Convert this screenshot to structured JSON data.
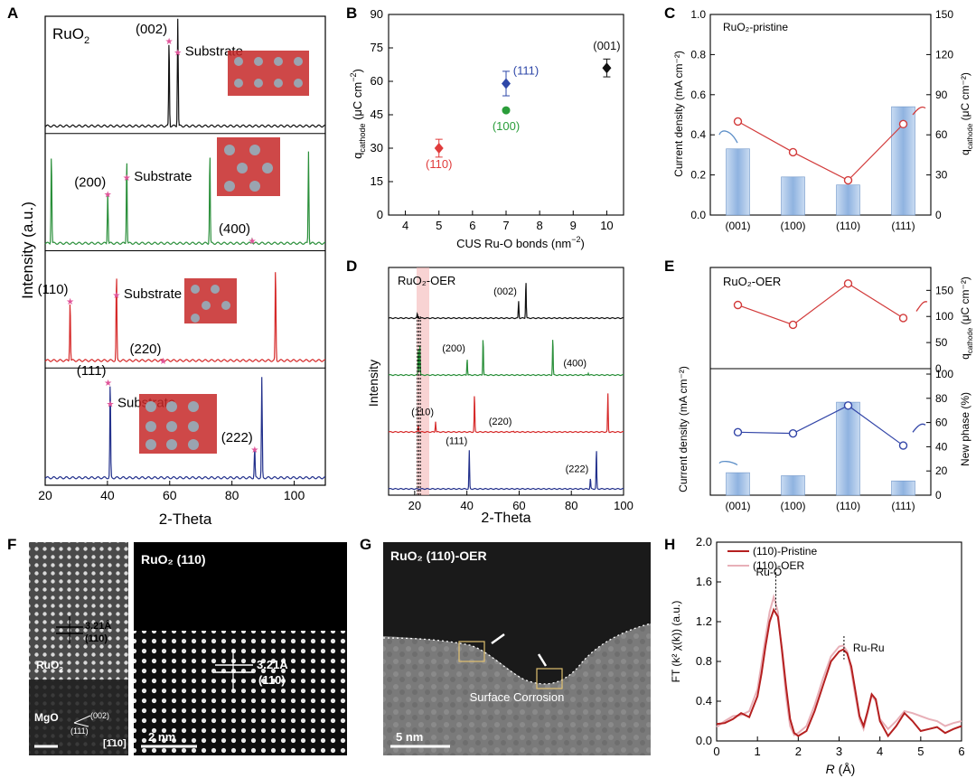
{
  "panel_letters": {
    "A": "A",
    "B": "B",
    "C": "C",
    "D": "D",
    "E": "E",
    "F": "F",
    "G": "G",
    "H": "H"
  },
  "chart_data": [
    {
      "panel": "A",
      "type": "line",
      "xlabel": "2-Theta",
      "ylabel": "Intensity (a.u.)",
      "xlim": [
        20,
        110
      ],
      "xticks": [
        20,
        40,
        60,
        80,
        100
      ],
      "sample_label": "RuO",
      "sample_label_sub": "2",
      "series": [
        {
          "color": "#111111",
          "base": 0.2,
          "peaks": [
            [
              59.8,
              0.85
            ],
            [
              62.6,
              1.05
            ]
          ]
        },
        {
          "color": "#2a8f3a",
          "base": 0.2,
          "peaks": [
            [
              22.0,
              0.9
            ],
            [
              40.1,
              0.5
            ],
            [
              46.2,
              0.85
            ],
            [
              72.9,
              0.9
            ],
            [
              86.5,
              0.05
            ],
            [
              104.6,
              0.9
            ]
          ]
        },
        {
          "color": "#d62a2a",
          "base": 0.2,
          "peaks": [
            [
              28.0,
              0.6
            ],
            [
              42.9,
              0.85
            ],
            [
              57.9,
              0.02
            ],
            [
              94.0,
              0.92
            ]
          ]
        },
        {
          "color": "#23318c",
          "base": 0.2,
          "peaks": [
            [
              40.9,
              0.95
            ],
            [
              87.3,
              0.3
            ],
            [
              89.6,
              0.97
            ]
          ]
        }
      ],
      "annotations": [
        {
          "strip": 0,
          "text": "(002)",
          "x": 59.8
        },
        {
          "strip": 0,
          "text": "Substrate",
          "x": 62.6
        },
        {
          "strip": 1,
          "text": "(200)",
          "x": 40.1
        },
        {
          "strip": 1,
          "text": "Substrate",
          "x": 46.2
        },
        {
          "strip": 1,
          "text": "(400)",
          "x": 86.5
        },
        {
          "strip": 2,
          "text": "(110)",
          "x": 28.0
        },
        {
          "strip": 2,
          "text": "Substrate",
          "x": 42.9
        },
        {
          "strip": 2,
          "text": "(220)",
          "x": 57.9
        },
        {
          "strip": 3,
          "text": "Substrate",
          "x": 40.9
        },
        {
          "strip": 3,
          "text": "(111)",
          "x": 40.2
        },
        {
          "strip": 3,
          "text": "(222)",
          "x": 87.3
        }
      ]
    },
    {
      "panel": "B",
      "type": "scatter",
      "xlabel": "CUS Ru-O bonds (nm",
      "xlabel_sup": "−2",
      "xlabel_end": ")",
      "ylabel": "q",
      "ylabel_sub": "cathode",
      "ylabel_end": " (μC cm",
      "ylabel_sup": "−2",
      "ylabel_close": ")",
      "xlim": [
        3.5,
        10.5
      ],
      "ylim": [
        0,
        90
      ],
      "xticks": [
        4,
        5,
        6,
        7,
        8,
        9,
        10
      ],
      "yticks": [
        0,
        15,
        30,
        45,
        60,
        75,
        90
      ],
      "points": [
        {
          "label": "(110)",
          "x": 5,
          "y": 30,
          "err": 4,
          "color": "#e03b3b",
          "shape": "diamond"
        },
        {
          "label": "(100)",
          "x": 7,
          "y": 47,
          "err": 0,
          "color": "#2a9d3a",
          "shape": "circle"
        },
        {
          "label": "(111)",
          "x": 7,
          "y": 59,
          "err": 5.5,
          "color": "#2e47a8",
          "shape": "diamond"
        },
        {
          "label": "(001)",
          "x": 10,
          "y": 66,
          "err": 4,
          "color": "#111111",
          "shape": "diamond"
        }
      ]
    },
    {
      "panel": "C",
      "type": "bar",
      "title": "RuO₂-pristine",
      "categories": [
        "(001)",
        "(100)",
        "(110)",
        "(111)"
      ],
      "ylabel": "Current density (mA cm⁻²)",
      "ylabel2": "q",
      "ylabel2_sub": "cathode",
      "ylabel2_end": " (μC cm⁻²)",
      "ylim": [
        0,
        1.0
      ],
      "yticks": [
        0.0,
        0.2,
        0.4,
        0.6,
        0.8,
        1.0
      ],
      "y2lim": [
        0,
        150
      ],
      "y2ticks": [
        0,
        30,
        60,
        90,
        120,
        150
      ],
      "bars": [
        0.33,
        0.19,
        0.15,
        0.54
      ],
      "line": [
        70,
        47,
        26,
        68
      ],
      "line_color": "#d23a3a",
      "bar_color": "#8fb3e0"
    },
    {
      "panel": "D",
      "type": "line",
      "xlabel": "2-Theta",
      "ylabel": "Intensity",
      "xlim": [
        10,
        100
      ],
      "xticks": [
        20,
        40,
        60,
        80,
        100
      ],
      "title": "RuO₂-OER",
      "series": [
        {
          "color": "#111111",
          "base": 0.0,
          "peaks": [
            [
              21.0,
              0.1
            ],
            [
              59.8,
              0.4
            ],
            [
              62.6,
              0.9
            ]
          ]
        },
        {
          "color": "#2a8f3a",
          "base": 0.0,
          "peaks": [
            [
              21.4,
              0.6
            ],
            [
              22.0,
              0.7
            ],
            [
              40.1,
              0.4
            ],
            [
              46.2,
              0.9
            ],
            [
              72.9,
              0.9
            ],
            [
              86.5,
              0.05
            ]
          ]
        },
        {
          "color": "#d62a2a",
          "base": 0.0,
          "peaks": [
            [
              21.4,
              0.15
            ],
            [
              28.0,
              0.25
            ],
            [
              42.9,
              0.9
            ],
            [
              57.9,
              0.02
            ],
            [
              94.0,
              0.9
            ]
          ]
        },
        {
          "color": "#23318c",
          "base": 0.0,
          "peaks": [
            [
              40.9,
              0.9
            ],
            [
              87.3,
              0.25
            ],
            [
              89.6,
              0.95
            ]
          ]
        }
      ],
      "annotations": [
        {
          "strip": 0,
          "text": "(002)",
          "x": 59.8
        },
        {
          "strip": 1,
          "text": "(200)",
          "x": 40.1
        },
        {
          "strip": 1,
          "text": "(400)",
          "x": 86.5
        },
        {
          "strip": 2,
          "text": "(110)",
          "x": 28.0
        },
        {
          "strip": 2,
          "text": "(220)",
          "x": 57.9
        },
        {
          "strip": 3,
          "text": "(111)",
          "x": 40.9
        },
        {
          "strip": 3,
          "text": "(222)",
          "x": 87.3
        }
      ]
    },
    {
      "panel": "E",
      "type": "bar",
      "title": "RuO₂-OER",
      "categories": [
        "(001)",
        "(100)",
        "(110)",
        "(111)"
      ],
      "top": {
        "ylabel": "q",
        "ylabel_sub": "cathode",
        "ylabel_end": " (μC cm⁻²)",
        "ylim": [
          0,
          180
        ],
        "yticks": [
          0,
          50,
          100,
          150
        ],
        "line": [
          122,
          84,
          163,
          97
        ],
        "color": "#d23a3a"
      },
      "bottom": {
        "ylabel": "Current density (mA cm⁻²)",
        "ylim": [
          0,
          2.8
        ],
        "ylabel2": "New phase (%)",
        "y2lim": [
          0,
          100
        ],
        "y2ticks": [
          0,
          20,
          40,
          60,
          80,
          100
        ],
        "bars": [
          0.52,
          0.45,
          2.15,
          0.33
        ],
        "line": [
          52,
          51,
          74,
          41
        ],
        "color": "#3346a8"
      }
    },
    {
      "panel": "H",
      "type": "line",
      "xlabel": "R (Å)",
      "xlabel_italic": "R",
      "xlabel_rest": " (Å)",
      "ylabel": "FT (k² χ(k)) (a.u.)",
      "xlim": [
        0,
        6
      ],
      "ylim": [
        0,
        2.0
      ],
      "xticks": [
        0,
        1,
        2,
        3,
        4,
        5,
        6
      ],
      "yticks": [
        0.0,
        0.4,
        0.8,
        1.2,
        1.6,
        2.0
      ],
      "series": [
        {
          "name": "(110)-Pristine",
          "color": "#b52020",
          "x": [
            0,
            0.2,
            0.4,
            0.6,
            0.8,
            1.0,
            1.1,
            1.2,
            1.3,
            1.4,
            1.5,
            1.6,
            1.7,
            1.8,
            1.9,
            2.0,
            2.2,
            2.4,
            2.6,
            2.8,
            3.0,
            3.1,
            3.2,
            3.3,
            3.4,
            3.5,
            3.6,
            3.7,
            3.8,
            3.9,
            4.0,
            4.2,
            4.4,
            4.6,
            4.8,
            5.0,
            5.2,
            5.4,
            5.6,
            5.8,
            6.0
          ],
          "y": [
            0.17,
            0.18,
            0.22,
            0.28,
            0.24,
            0.45,
            0.68,
            0.96,
            1.2,
            1.32,
            1.25,
            0.92,
            0.55,
            0.22,
            0.08,
            0.05,
            0.1,
            0.3,
            0.55,
            0.8,
            0.9,
            0.92,
            0.88,
            0.75,
            0.5,
            0.25,
            0.15,
            0.3,
            0.47,
            0.42,
            0.2,
            0.05,
            0.15,
            0.28,
            0.2,
            0.1,
            0.12,
            0.14,
            0.08,
            0.12,
            0.15
          ]
        },
        {
          "name": "(110)-OER",
          "color": "#e8b0b8",
          "x": [
            0,
            0.2,
            0.4,
            0.6,
            0.8,
            1.0,
            1.1,
            1.2,
            1.3,
            1.4,
            1.5,
            1.6,
            1.7,
            1.8,
            1.9,
            2.0,
            2.2,
            2.4,
            2.6,
            2.8,
            3.0,
            3.1,
            3.2,
            3.3,
            3.4,
            3.5,
            3.6,
            3.7,
            3.8,
            3.9,
            4.0,
            4.2,
            4.4,
            4.6,
            4.8,
            5.0,
            5.2,
            5.4,
            5.6,
            5.8,
            6.0
          ],
          "y": [
            0.14,
            0.2,
            0.25,
            0.26,
            0.3,
            0.52,
            0.78,
            1.05,
            1.3,
            1.45,
            1.3,
            0.88,
            0.45,
            0.15,
            0.06,
            0.08,
            0.15,
            0.36,
            0.62,
            0.85,
            0.95,
            0.96,
            0.9,
            0.7,
            0.45,
            0.22,
            0.12,
            0.28,
            0.46,
            0.4,
            0.22,
            0.12,
            0.2,
            0.3,
            0.28,
            0.25,
            0.22,
            0.2,
            0.15,
            0.18,
            0.2
          ]
        }
      ],
      "annotations": [
        {
          "text": "Ru-O",
          "x": 1.45
        },
        {
          "text": "Ru-Ru",
          "x": 3.12
        }
      ]
    }
  ],
  "images": {
    "F_left_substrate": "MgO",
    "F_left_film": "RuO",
    "F_left_film_sub": "2",
    "F_left_spacing": "3.21Å",
    "F_left_plane": "(110)",
    "F_left_dir_002": "(002)",
    "F_left_dir_111": "(111)",
    "F_left_zone": "[1̄10]",
    "F_right_title": "RuO₂ (110)",
    "F_right_spacing": "3.21Å",
    "F_right_plane": "(110)",
    "F_right_scale": "2 nm",
    "G_title": "RuO₂ (110)-OER",
    "G_caption": "Surface Corrosion",
    "G_scale": "5 nm"
  }
}
